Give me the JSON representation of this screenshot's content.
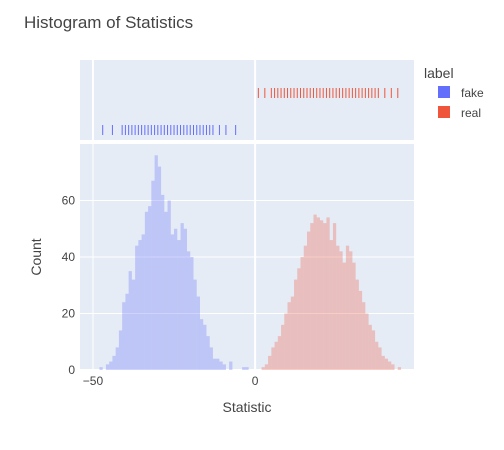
{
  "chart_data": {
    "type": "bar",
    "title": "Histogram of Statistics",
    "xlabel": "Statistic",
    "ylabel": "Count",
    "xlim": [
      -54,
      49
    ],
    "ylim": [
      0,
      80
    ],
    "x_ticks": [
      -50,
      0
    ],
    "y_ticks": [
      0,
      20,
      40,
      60
    ],
    "grid": true,
    "legend": {
      "title": "label",
      "placement": "top-right",
      "entries": [
        {
          "name": "fake",
          "color": "#636efa"
        },
        {
          "name": "real",
          "color": "#ef553b"
        }
      ]
    },
    "bin_width": 1,
    "series": [
      {
        "name": "fake",
        "color": "#636efa",
        "bins": [
          [
            -48,
            1
          ],
          [
            -46,
            2
          ],
          [
            -45,
            3
          ],
          [
            -44,
            5
          ],
          [
            -43,
            8
          ],
          [
            -42,
            14
          ],
          [
            -41,
            24
          ],
          [
            -40,
            27
          ],
          [
            -39,
            35
          ],
          [
            -38,
            32
          ],
          [
            -37,
            44
          ],
          [
            -36,
            46
          ],
          [
            -35,
            48
          ],
          [
            -34,
            56
          ],
          [
            -33,
            58
          ],
          [
            -32,
            67
          ],
          [
            -31,
            76
          ],
          [
            -30,
            72
          ],
          [
            -29,
            62
          ],
          [
            -28,
            56
          ],
          [
            -27,
            60
          ],
          [
            -26,
            48
          ],
          [
            -25,
            50
          ],
          [
            -24,
            46
          ],
          [
            -23,
            52
          ],
          [
            -22,
            50
          ],
          [
            -21,
            42
          ],
          [
            -20,
            40
          ],
          [
            -19,
            32
          ],
          [
            -18,
            26
          ],
          [
            -17,
            18
          ],
          [
            -16,
            16
          ],
          [
            -15,
            12
          ],
          [
            -14,
            8
          ],
          [
            -13,
            4
          ],
          [
            -12,
            4
          ],
          [
            -11,
            3
          ],
          [
            -10,
            2
          ],
          [
            -8,
            3
          ],
          [
            -4,
            1
          ],
          [
            -3,
            1
          ]
        ]
      },
      {
        "name": "real",
        "color": "#ef553b",
        "bins": [
          [
            2,
            1
          ],
          [
            3,
            2
          ],
          [
            4,
            5
          ],
          [
            5,
            8
          ],
          [
            6,
            10
          ],
          [
            7,
            12
          ],
          [
            8,
            16
          ],
          [
            9,
            20
          ],
          [
            10,
            24
          ],
          [
            11,
            26
          ],
          [
            12,
            32
          ],
          [
            13,
            36
          ],
          [
            14,
            40
          ],
          [
            15,
            44
          ],
          [
            16,
            49
          ],
          [
            17,
            52
          ],
          [
            18,
            55
          ],
          [
            19,
            54
          ],
          [
            20,
            53
          ],
          [
            21,
            52
          ],
          [
            22,
            54
          ],
          [
            23,
            46
          ],
          [
            24,
            52
          ],
          [
            25,
            44
          ],
          [
            26,
            42
          ],
          [
            27,
            38
          ],
          [
            28,
            44
          ],
          [
            29,
            42
          ],
          [
            30,
            38
          ],
          [
            31,
            32
          ],
          [
            32,
            28
          ],
          [
            33,
            24
          ],
          [
            34,
            20
          ],
          [
            35,
            16
          ],
          [
            36,
            14
          ],
          [
            37,
            10
          ],
          [
            38,
            8
          ],
          [
            39,
            5
          ],
          [
            40,
            4
          ],
          [
            41,
            3
          ],
          [
            42,
            2
          ],
          [
            44,
            1
          ]
        ]
      }
    ],
    "rug": {
      "fake": [
        -47,
        -44,
        -41,
        -40,
        -39,
        -38,
        -37,
        -36,
        -35,
        -34,
        -33,
        -32,
        -31,
        -30,
        -29,
        -28,
        -27,
        -26,
        -25,
        -24,
        -23,
        -22,
        -21,
        -20,
        -19,
        -18,
        -17,
        -16,
        -15,
        -14,
        -13,
        -11,
        -9,
        -6
      ],
      "real": [
        1,
        3,
        5,
        6,
        7,
        8,
        9,
        10,
        11,
        12,
        13,
        14,
        15,
        16,
        17,
        18,
        19,
        20,
        21,
        22,
        23,
        24,
        25,
        26,
        27,
        28,
        29,
        30,
        31,
        32,
        33,
        34,
        35,
        36,
        37,
        38,
        40,
        42,
        44
      ]
    }
  }
}
